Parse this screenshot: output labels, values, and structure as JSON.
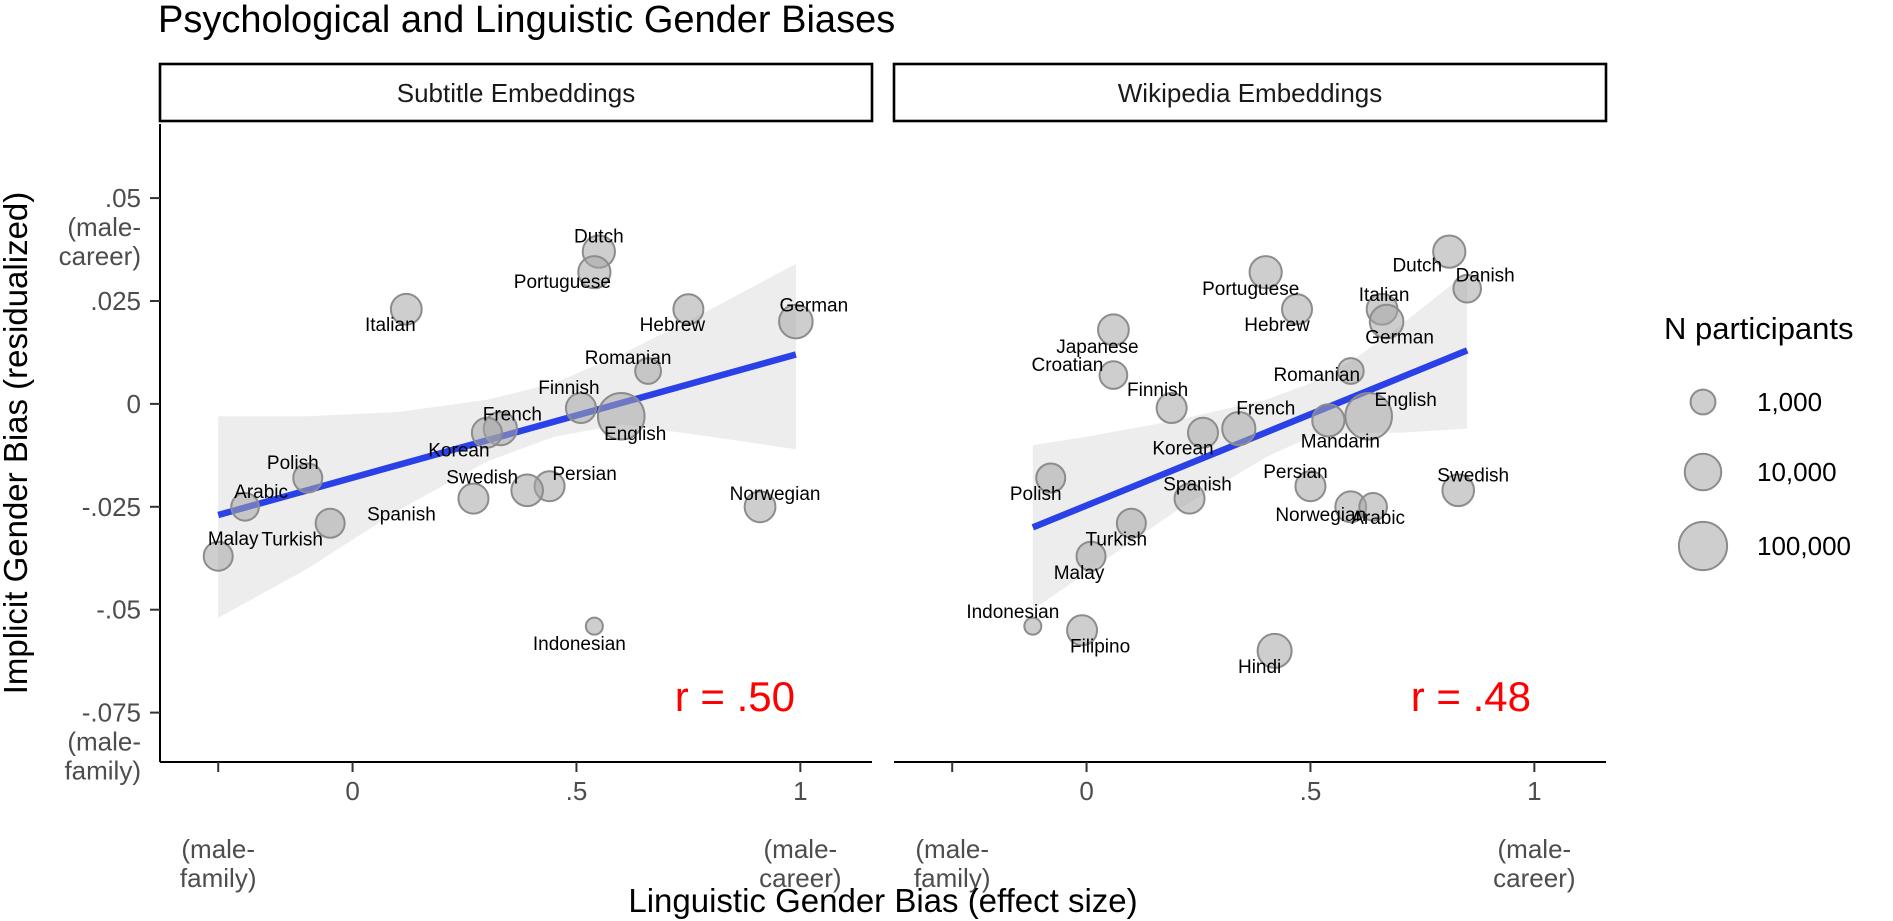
{
  "chart_data": {
    "type": "scatter",
    "title": "Psychological and  Linguistic Gender Biases",
    "xlabel": "Linguistic Gender Bias (effect size)",
    "ylabel": "Implicit  Gender Bias (residualized)",
    "xlim": [
      -0.43,
      1.16
    ],
    "ylim": [
      -0.087,
      0.068
    ],
    "x_ticks": [
      {
        "value": -0.3,
        "lines": [
          "",
          "",
          "(male-",
          "family)"
        ]
      },
      {
        "value": 0,
        "lines": [
          "0"
        ]
      },
      {
        "value": 0.5,
        "lines": [
          ".5"
        ]
      },
      {
        "value": 1,
        "lines": [
          "1",
          "",
          "(male-",
          "career)"
        ]
      }
    ],
    "y_ticks": [
      {
        "value": 0.05,
        "lines": [
          ".05",
          "(male-",
          "career)"
        ]
      },
      {
        "value": 0.025,
        "lines": [
          ".025"
        ]
      },
      {
        "value": 0,
        "lines": [
          "0"
        ]
      },
      {
        "value": -0.025,
        "lines": [
          "-.025"
        ]
      },
      {
        "value": -0.05,
        "lines": [
          "-.05"
        ]
      },
      {
        "value": -0.075,
        "lines": [
          "-.075",
          "(male-",
          "family)"
        ]
      }
    ],
    "legend": {
      "title": "N participants",
      "position": "right",
      "entries": [
        {
          "label": "1,000",
          "n": 1000
        },
        {
          "label": "10,000",
          "n": 10000
        },
        {
          "label": "100,000",
          "n": 100000
        }
      ]
    },
    "point_color": "#a6a6a6",
    "line_color": "#2b41e8",
    "ribbon_color": "#ebebeb",
    "r_color": "#ff0000",
    "panels": [
      {
        "strip": "Subtitle Embeddings",
        "r_label": "r = .50",
        "fit": {
          "x": [
            -0.3,
            0.99
          ],
          "y": [
            -0.027,
            0.012
          ]
        },
        "ribbon": {
          "x": [
            -0.3,
            -0.1,
            0.1,
            0.3,
            0.45,
            0.6,
            0.8,
            0.99
          ],
          "upper": [
            -0.003,
            -0.003,
            -0.002,
            0.001,
            0.005,
            0.012,
            0.023,
            0.034
          ],
          "lower": [
            -0.052,
            -0.04,
            -0.026,
            -0.014,
            -0.008,
            -0.005,
            -0.008,
            -0.011
          ]
        },
        "points": [
          {
            "lang": "Dutch",
            "x": 0.55,
            "y": 0.037,
            "n": 8000
          },
          {
            "lang": "Portuguese",
            "x": 0.54,
            "y": 0.032,
            "n": 8000
          },
          {
            "lang": "Italian",
            "x": 0.12,
            "y": 0.023,
            "n": 6000
          },
          {
            "lang": "Hebrew",
            "x": 0.75,
            "y": 0.023,
            "n": 5000
          },
          {
            "lang": "German",
            "x": 0.99,
            "y": 0.02,
            "n": 11000
          },
          {
            "lang": "Romanian",
            "x": 0.66,
            "y": 0.008,
            "n": 2000
          },
          {
            "lang": "Finnish",
            "x": 0.51,
            "y": -0.001,
            "n": 5000
          },
          {
            "lang": "English",
            "x": 0.6,
            "y": -0.003,
            "n": 180000
          },
          {
            "lang": "French",
            "x": 0.33,
            "y": -0.006,
            "n": 10000
          },
          {
            "lang": "Korean",
            "x": 0.3,
            "y": -0.007,
            "n": 5000
          },
          {
            "lang": "Polish",
            "x": -0.1,
            "y": -0.018,
            "n": 4000
          },
          {
            "lang": "Persian",
            "x": 0.44,
            "y": -0.02,
            "n": 5000
          },
          {
            "lang": "Swedish",
            "x": 0.39,
            "y": -0.021,
            "n": 7000
          },
          {
            "lang": "Spanish",
            "x": 0.27,
            "y": -0.023,
            "n": 5000
          },
          {
            "lang": "Arabic",
            "x": -0.24,
            "y": -0.025,
            "n": 3000
          },
          {
            "lang": "Norwegian",
            "x": 0.91,
            "y": -0.025,
            "n": 6000
          },
          {
            "lang": "Turkish",
            "x": -0.05,
            "y": -0.029,
            "n": 4000
          },
          {
            "lang": "Malay",
            "x": -0.3,
            "y": -0.037,
            "n": 4000
          },
          {
            "lang": "Indonesian",
            "x": 0.54,
            "y": -0.054,
            "n": 300
          }
        ]
      },
      {
        "strip": "Wikipedia Embeddings",
        "r_label": "r = .48",
        "fit": {
          "x": [
            -0.12,
            0.85
          ],
          "y": [
            -0.03,
            0.013
          ]
        },
        "ribbon": {
          "x": [
            -0.12,
            0.0,
            0.2,
            0.4,
            0.5,
            0.6,
            0.7,
            0.85
          ],
          "upper": [
            -0.01,
            -0.008,
            -0.004,
            0.001,
            0.005,
            0.011,
            0.019,
            0.032
          ],
          "lower": [
            -0.05,
            -0.041,
            -0.026,
            -0.013,
            -0.008,
            -0.007,
            -0.007,
            -0.006
          ]
        },
        "points": [
          {
            "lang": "Dutch",
            "x": 0.81,
            "y": 0.037,
            "n": 8000
          },
          {
            "lang": "Danish",
            "x": 0.85,
            "y": 0.028,
            "n": 3000
          },
          {
            "lang": "Portuguese",
            "x": 0.4,
            "y": 0.032,
            "n": 8000
          },
          {
            "lang": "Italian",
            "x": 0.66,
            "y": 0.023,
            "n": 6000
          },
          {
            "lang": "Hebrew",
            "x": 0.47,
            "y": 0.023,
            "n": 5000
          },
          {
            "lang": "German",
            "x": 0.67,
            "y": 0.02,
            "n": 11000
          },
          {
            "lang": "Japanese",
            "x": 0.06,
            "y": 0.018,
            "n": 6000
          },
          {
            "lang": "Croatian",
            "x": 0.06,
            "y": 0.007,
            "n": 3000
          },
          {
            "lang": "Romanian",
            "x": 0.59,
            "y": 0.008,
            "n": 2000
          },
          {
            "lang": "Finnish",
            "x": 0.19,
            "y": -0.001,
            "n": 5000
          },
          {
            "lang": "English",
            "x": 0.63,
            "y": -0.003,
            "n": 180000
          },
          {
            "lang": "Mandarin",
            "x": 0.54,
            "y": -0.004,
            "n": 8000
          },
          {
            "lang": "French",
            "x": 0.34,
            "y": -0.006,
            "n": 10000
          },
          {
            "lang": "Korean",
            "x": 0.26,
            "y": -0.007,
            "n": 5000
          },
          {
            "lang": "Persian",
            "x": 0.5,
            "y": -0.02,
            "n": 5000
          },
          {
            "lang": "Swedish",
            "x": 0.83,
            "y": -0.021,
            "n": 7000
          },
          {
            "lang": "Polish",
            "x": -0.08,
            "y": -0.018,
            "n": 4000
          },
          {
            "lang": "Spanish",
            "x": 0.23,
            "y": -0.023,
            "n": 5000
          },
          {
            "lang": "Norwegian",
            "x": 0.59,
            "y": -0.025,
            "n": 6000
          },
          {
            "lang": "Arabic",
            "x": 0.64,
            "y": -0.025,
            "n": 3000
          },
          {
            "lang": "Turkish",
            "x": 0.1,
            "y": -0.029,
            "n": 4000
          },
          {
            "lang": "Malay",
            "x": 0.01,
            "y": -0.037,
            "n": 4000
          },
          {
            "lang": "Indonesian",
            "x": -0.12,
            "y": -0.054,
            "n": 300
          },
          {
            "lang": "Filipino",
            "x": -0.01,
            "y": -0.055,
            "n": 5000
          },
          {
            "lang": "Hindi",
            "x": 0.42,
            "y": -0.06,
            "n": 12000
          }
        ]
      }
    ]
  }
}
